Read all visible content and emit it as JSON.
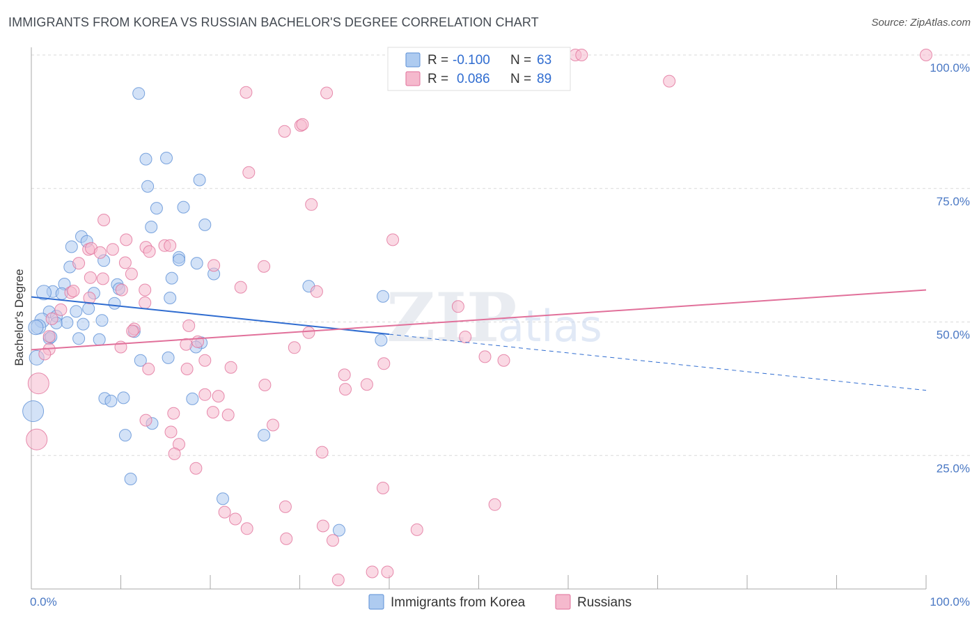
{
  "header": {
    "title": "IMMIGRANTS FROM KOREA VS RUSSIAN BACHELOR'S DEGREE CORRELATION CHART",
    "source": "Source: ZipAtlas.com"
  },
  "watermark": {
    "main": "ZIP",
    "sub": "atlas"
  },
  "colors": {
    "korea": "#5b8fd6",
    "korea_fill": "#aecbf0",
    "russia": "#e1709a",
    "russia_fill": "#f5b9cd",
    "korea_line": "#2f6cd0",
    "russia_line": "#e1709a",
    "grid": "#d9d9d9",
    "tick_text": "#4a78c4"
  },
  "legend": {
    "rows": [
      {
        "r_label": "R =",
        "r_value": "-0.100",
        "n_label": "N =",
        "n_value": "63"
      },
      {
        "r_label": "R =",
        "r_value": "0.086",
        "n_label": "N =",
        "n_value": "89"
      }
    ]
  },
  "bottom_legend": [
    "Immigrants from Korea",
    "Russians"
  ],
  "chart_data": {
    "type": "scatter",
    "ylabel": "Bachelor's Degree",
    "xlabel": "",
    "xlim": [
      0,
      100
    ],
    "ylim": [
      0,
      100
    ],
    "x_tick_labels": [
      "0.0%",
      "100.0%"
    ],
    "y_ticks": [
      25,
      50,
      75,
      100
    ],
    "y_tick_labels": [
      "25.0%",
      "50.0%",
      "75.0%",
      "100.0%"
    ],
    "grid": true,
    "series": [
      {
        "name": "Immigrants from Korea",
        "r": -0.1,
        "n": 63,
        "trend": {
          "x0": 0,
          "y0": 54.7,
          "x1": 40,
          "y1": 47.7,
          "dashed_to_x": 100,
          "dashed_to_y": 37.2
        },
        "points": [
          [
            12,
            92.8
          ],
          [
            12.8,
            80.5
          ],
          [
            15.1,
            80.7
          ],
          [
            13,
            75.4
          ],
          [
            18.8,
            76.6
          ],
          [
            14,
            71.3
          ],
          [
            17,
            71.5
          ],
          [
            13.4,
            67.8
          ],
          [
            19.4,
            68.2
          ],
          [
            5.6,
            66.0
          ],
          [
            6.2,
            65.1
          ],
          [
            4.5,
            64.1
          ],
          [
            8.1,
            61.5
          ],
          [
            16.5,
            62.1
          ],
          [
            16.5,
            61.6
          ],
          [
            18.5,
            61.0
          ],
          [
            4.3,
            60.3
          ],
          [
            20.4,
            59.0
          ],
          [
            15.7,
            58.2
          ],
          [
            3.7,
            57.1
          ],
          [
            9.6,
            57.0
          ],
          [
            9.8,
            56.2
          ],
          [
            2.4,
            55.7
          ],
          [
            1.4,
            55.5
          ],
          [
            7,
            55.4
          ],
          [
            3.4,
            55.3
          ],
          [
            31,
            56.7
          ],
          [
            39.3,
            54.8
          ],
          [
            15.5,
            54.5
          ],
          [
            9.3,
            53.5
          ],
          [
            6.4,
            52.5
          ],
          [
            5,
            52.0
          ],
          [
            2,
            51.9
          ],
          [
            2.8,
            51.1
          ],
          [
            1.2,
            50.3
          ],
          [
            7.9,
            50.3
          ],
          [
            2.8,
            49.8
          ],
          [
            4,
            49.9
          ],
          [
            5.8,
            49.6
          ],
          [
            0.8,
            49.1
          ],
          [
            11.5,
            48.2
          ],
          [
            2.0,
            46.9
          ],
          [
            5.3,
            46.9
          ],
          [
            7.6,
            46.7
          ],
          [
            19,
            46.1
          ],
          [
            18.4,
            45.3
          ],
          [
            39.1,
            46.6
          ],
          [
            15.3,
            43.3
          ],
          [
            12.2,
            42.8
          ],
          [
            0.6,
            43.3
          ],
          [
            0.2,
            33.3
          ],
          [
            8.2,
            35.7
          ],
          [
            10.3,
            35.8
          ],
          [
            18,
            35.6
          ],
          [
            8.9,
            35.2
          ],
          [
            13.5,
            31.0
          ],
          [
            10.5,
            28.8
          ],
          [
            26,
            28.8
          ],
          [
            11.1,
            20.6
          ],
          [
            21.4,
            16.9
          ],
          [
            34.4,
            11.0
          ],
          [
            0.5,
            49.0
          ],
          [
            2.2,
            47.2
          ]
        ]
      },
      {
        "name": "Russians",
        "r": 0.086,
        "n": 89,
        "trend": {
          "x0": 0,
          "y0": 44.8,
          "x1": 100,
          "y1": 56.0
        },
        "points": [
          [
            60.8,
            100
          ],
          [
            61.5,
            100
          ],
          [
            100,
            100
          ],
          [
            71.3,
            95.1
          ],
          [
            24,
            93
          ],
          [
            33,
            92.9
          ],
          [
            30.1,
            86.8
          ],
          [
            30.3,
            87
          ],
          [
            28.3,
            85.7
          ],
          [
            24.3,
            78
          ],
          [
            31.3,
            72
          ],
          [
            8.1,
            69.1
          ],
          [
            10.6,
            65.4
          ],
          [
            40.4,
            65.4
          ],
          [
            12.8,
            64.0
          ],
          [
            14.9,
            64.3
          ],
          [
            15.5,
            64.3
          ],
          [
            6.4,
            63.6
          ],
          [
            6.7,
            63.8
          ],
          [
            9.1,
            63.6
          ],
          [
            13.2,
            63.2
          ],
          [
            7.7,
            63.0
          ],
          [
            10.5,
            61.1
          ],
          [
            5.3,
            61.0
          ],
          [
            26,
            60.4
          ],
          [
            20.4,
            60.6
          ],
          [
            11.2,
            59.0
          ],
          [
            6.6,
            58.3
          ],
          [
            8.0,
            58.1
          ],
          [
            12.7,
            56.0
          ],
          [
            10.1,
            56.0
          ],
          [
            23.4,
            56.5
          ],
          [
            31.9,
            55.7
          ],
          [
            4.4,
            55.5
          ],
          [
            4.7,
            55.8
          ],
          [
            6.5,
            54.5
          ],
          [
            12.7,
            53.6
          ],
          [
            47.7,
            52.9
          ],
          [
            3.3,
            52.3
          ],
          [
            2.3,
            50.6
          ],
          [
            17.6,
            49.3
          ],
          [
            11.5,
            48.7
          ],
          [
            11.3,
            48.3
          ],
          [
            31.0,
            48.0
          ],
          [
            48.5,
            47.2
          ],
          [
            2,
            47.3
          ],
          [
            18.6,
            46.3
          ],
          [
            17.3,
            45.8
          ],
          [
            10,
            45.3
          ],
          [
            29.4,
            45.2
          ],
          [
            2.0,
            44.9
          ],
          [
            1.5,
            44.0
          ],
          [
            50.7,
            43.5
          ],
          [
            52.8,
            42.8
          ],
          [
            19.4,
            42.8
          ],
          [
            39.4,
            42.2
          ],
          [
            22.3,
            41.5
          ],
          [
            13.1,
            41.2
          ],
          [
            17.4,
            41.2
          ],
          [
            35,
            40.1
          ],
          [
            0.8,
            38.5
          ],
          [
            26.1,
            38.2
          ],
          [
            37.5,
            38.3
          ],
          [
            35.1,
            37.4
          ],
          [
            19.4,
            36.4
          ],
          [
            20.9,
            36.1
          ],
          [
            20.3,
            33.1
          ],
          [
            15.9,
            32.9
          ],
          [
            22.0,
            32.6
          ],
          [
            12.8,
            31.6
          ],
          [
            27,
            30.7
          ],
          [
            15.6,
            29.4
          ],
          [
            0.6,
            28.0
          ],
          [
            16.5,
            27.1
          ],
          [
            16,
            25.3
          ],
          [
            32.5,
            25.6
          ],
          [
            18.4,
            22.6
          ],
          [
            39.3,
            18.9
          ],
          [
            28.4,
            15.4
          ],
          [
            51.8,
            15.8
          ],
          [
            21.6,
            14.4
          ],
          [
            22.8,
            13.1
          ],
          [
            24.1,
            11.3
          ],
          [
            32.6,
            11.8
          ],
          [
            43.1,
            11.1
          ],
          [
            28.5,
            9.4
          ],
          [
            33.7,
            9.1
          ],
          [
            38.1,
            3.2
          ],
          [
            39.8,
            3.2
          ],
          [
            34.3,
            1.7
          ]
        ]
      }
    ]
  }
}
